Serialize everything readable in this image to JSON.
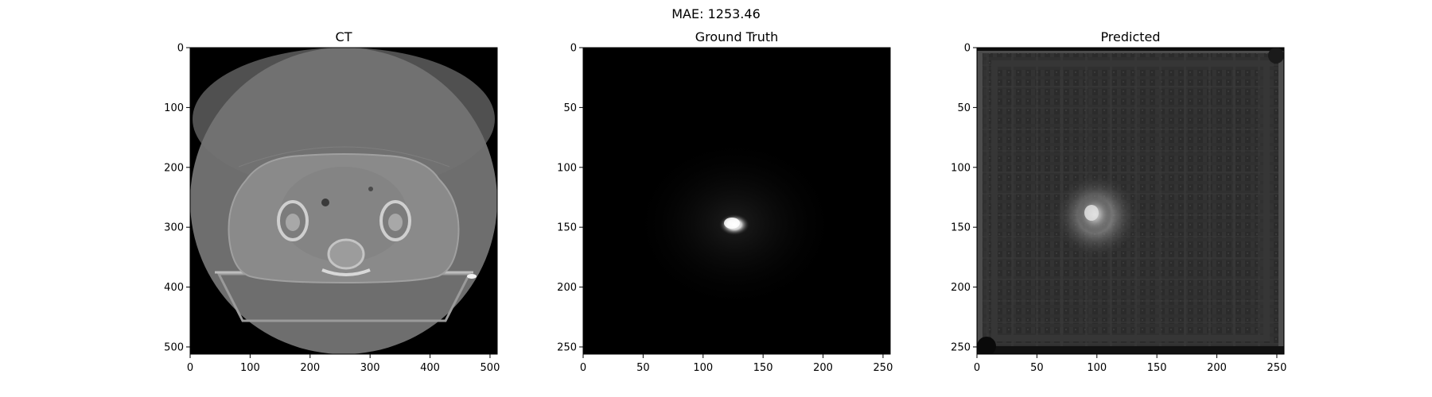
{
  "figure": {
    "suptitle": "MAE: 1253.46"
  },
  "chart_data": [
    {
      "type": "heatmap",
      "title": "CT",
      "xlabel": "",
      "ylabel": "",
      "colormap": "gray",
      "xlim": [
        0,
        512
      ],
      "ylim": [
        512,
        0
      ],
      "xticks": [
        0,
        100,
        200,
        300,
        400,
        500
      ],
      "yticks": [
        0,
        100,
        200,
        300,
        400,
        500
      ],
      "image": {
        "background": "#000000",
        "fov_circle": {
          "center": [
            256,
            256
          ],
          "radius": 256,
          "fill": "#6e6e6e"
        },
        "body_outline": {
          "center": [
            256,
            290
          ],
          "rx": 190,
          "ry": 150,
          "fill": "#8a8a8a"
        },
        "bones": [
          {
            "center": [
              175,
              290
            ],
            "radius": 28,
            "fill": "#b8b8b8"
          },
          {
            "center": [
              345,
              290
            ],
            "radius": 28,
            "fill": "#b8b8b8"
          }
        ],
        "table_color": "#9a9a9a"
      },
      "grid": false,
      "legend": "none"
    },
    {
      "type": "heatmap",
      "title": "Ground Truth",
      "xlabel": "",
      "ylabel": "",
      "colormap": "gray",
      "xlim": [
        0,
        256
      ],
      "ylim": [
        256,
        0
      ],
      "xticks": [
        0,
        50,
        100,
        150,
        200,
        250
      ],
      "yticks": [
        0,
        50,
        100,
        150,
        200,
        250
      ],
      "image": {
        "background": "#000000",
        "hotspot": {
          "center": [
            127,
            148
          ],
          "rx": 10,
          "ry": 7,
          "peak": "#ffffff"
        }
      },
      "grid": false,
      "legend": "none"
    },
    {
      "type": "heatmap",
      "title": "Predicted",
      "xlabel": "",
      "ylabel": "",
      "colormap": "gray",
      "xlim": [
        0,
        256
      ],
      "ylim": [
        256,
        0
      ],
      "xticks": [
        0,
        50,
        100,
        150,
        200,
        250
      ],
      "yticks": [
        0,
        50,
        100,
        150,
        200,
        250
      ],
      "image": {
        "background": "#2a2a2a",
        "grid_artifacts": true,
        "hotspot": {
          "center": [
            98,
            140
          ],
          "rx": 18,
          "ry": 18,
          "peak": "#e6e6e6"
        }
      },
      "grid": false,
      "legend": "none"
    }
  ]
}
